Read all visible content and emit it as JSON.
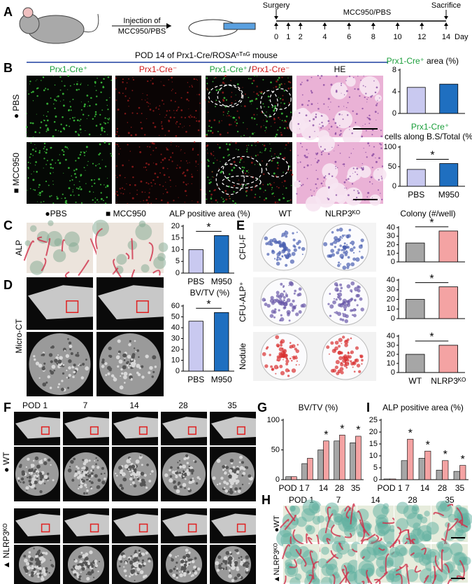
{
  "panel_letters": [
    "A",
    "B",
    "C",
    "D",
    "E",
    "F",
    "G",
    "H",
    "I"
  ],
  "A": {
    "injection": [
      "Injection of",
      "MCC950/PBS"
    ],
    "surgery": "Surgery",
    "treatment": "MCC950/PBS",
    "sacrifice": "Sacrifice",
    "days": [
      0,
      1,
      2,
      4,
      6,
      8,
      10,
      12,
      14
    ],
    "day_unit": "Day"
  },
  "B": {
    "header": "POD 14 of Prx1-Cre/ROSAⁿᵀⁿᴳ mouse",
    "columns": [
      "Prx1-Cre⁺",
      "Prx1-Cre⁻"
    ],
    "merge_label": [
      "Prx1-Cre⁺",
      "/",
      "Prx1-Cre⁻"
    ],
    "he": "HE",
    "rows": [
      "● PBS",
      "■ MCC950"
    ]
  },
  "C": {
    "groups": [
      "●PBS",
      "■ MCC950"
    ],
    "stain": "ALP"
  },
  "D": {
    "method": "Micro-CT"
  },
  "E": {
    "groups": [
      "WT",
      "NLRP3ᴷᴼ"
    ],
    "assays": [
      "CFU-F",
      "CFU-ALP⁺",
      "Nodule"
    ]
  },
  "F": {
    "timepoints": [
      "POD 1",
      "7",
      "14",
      "28",
      "35"
    ],
    "rows": [
      "● WT",
      "▲ NLRP3ᴷᴼ"
    ]
  },
  "H": {
    "timepoints": [
      "POD 1",
      "7",
      "14",
      "28",
      "35"
    ],
    "rows": [
      "●WT",
      "▲NLRP3ᴷᴼ"
    ]
  },
  "chart_data": [
    {
      "type": "bar",
      "title": [
        "Prx1-Cre⁺",
        "area (%)"
      ],
      "categories": [
        null,
        null
      ],
      "values": [
        4.8,
        5.4
      ],
      "colors": [
        "#c9c9f0",
        "#1f6fc0"
      ],
      "ylim": [
        0,
        8
      ],
      "yticks": [
        0,
        4,
        8
      ]
    },
    {
      "type": "bar",
      "title": [
        "Prx1-Cre⁺",
        "cells along B.S/Total (%)"
      ],
      "categories": [
        "PBS",
        "M950"
      ],
      "values": [
        43,
        58
      ],
      "colors": [
        "#c9c9f0",
        "#1f6fc0"
      ],
      "ylim": [
        0,
        100
      ],
      "yticks": [
        0,
        50,
        100
      ],
      "significance": "*"
    },
    {
      "type": "bar",
      "title": [
        "ALP positive area (%)"
      ],
      "categories": [
        "PBS",
        "M950"
      ],
      "values": [
        10,
        16
      ],
      "colors": [
        "#c9c9f0",
        "#1f6fc0"
      ],
      "ylim": [
        0,
        20
      ],
      "yticks": [
        0,
        5,
        10,
        15,
        20
      ],
      "significance": "*"
    },
    {
      "type": "bar",
      "title": [
        "BV/TV (%)"
      ],
      "categories": [
        "PBS",
        "M950"
      ],
      "values": [
        46,
        54
      ],
      "colors": [
        "#c9c9f0",
        "#1f6fc0"
      ],
      "ylim": [
        0,
        60
      ],
      "yticks": [
        0,
        10,
        20,
        30,
        40,
        50,
        60
      ],
      "significance": "*"
    },
    {
      "type": "bar",
      "title": [
        "Colony (#/well)"
      ],
      "categories": [
        null,
        null
      ],
      "values": [
        22,
        36
      ],
      "colors": [
        "#a6a6a6",
        "#f4a3a3"
      ],
      "ylim": [
        0,
        40
      ],
      "yticks": [
        0,
        10,
        20,
        30,
        40
      ],
      "significance": "*"
    },
    {
      "type": "bar",
      "categories": [
        null,
        null
      ],
      "values": [
        20,
        33
      ],
      "colors": [
        "#a6a6a6",
        "#f4a3a3"
      ],
      "ylim": [
        0,
        40
      ],
      "yticks": [
        0,
        10,
        20,
        30,
        40
      ],
      "significance": "*"
    },
    {
      "type": "bar",
      "categories": [
        "WT",
        "NLRP3ᴷᴼ"
      ],
      "values": [
        20,
        30
      ],
      "colors": [
        "#a6a6a6",
        "#f4a3a3"
      ],
      "ylim": [
        0,
        40
      ],
      "yticks": [
        0,
        10,
        20,
        30,
        40
      ],
      "significance": "*"
    },
    {
      "type": "grouped-bar",
      "title": [
        "BV/TV (%)"
      ],
      "categories": [
        "POD 1",
        "7",
        "14",
        "28",
        "35"
      ],
      "series": [
        {
          "color": "#a6a6a6",
          "values": [
            5,
            27,
            50,
            65,
            62
          ]
        },
        {
          "color": "#f4a3a3",
          "values": [
            5,
            36,
            65,
            75,
            73
          ]
        }
      ],
      "ylim": [
        0,
        100
      ],
      "yticks": [
        0,
        50,
        100
      ],
      "annotations": [
        {
          "text": "*",
          "category": "14"
        },
        {
          "text": "*",
          "category": "28"
        },
        {
          "text": "*",
          "category": "35"
        }
      ]
    },
    {
      "type": "grouped-bar",
      "title": [
        "ALP positive area (%)"
      ],
      "categories": [
        "POD 1",
        "7",
        "14",
        "28",
        "35"
      ],
      "series": [
        {
          "color": "#a6a6a6",
          "values": [
            0.3,
            8,
            9,
            4,
            3.5
          ]
        },
        {
          "color": "#f4a3a3",
          "values": [
            0.3,
            17,
            12,
            8,
            6
          ]
        }
      ],
      "ylim": [
        0,
        25
      ],
      "yticks": [
        0,
        5,
        10,
        15,
        20,
        25
      ],
      "annotations": [
        {
          "text": "*",
          "category": "7"
        },
        {
          "text": "*",
          "category": "14"
        },
        {
          "text": "*",
          "category": "28"
        },
        {
          "text": "*",
          "category": "35"
        }
      ]
    }
  ]
}
